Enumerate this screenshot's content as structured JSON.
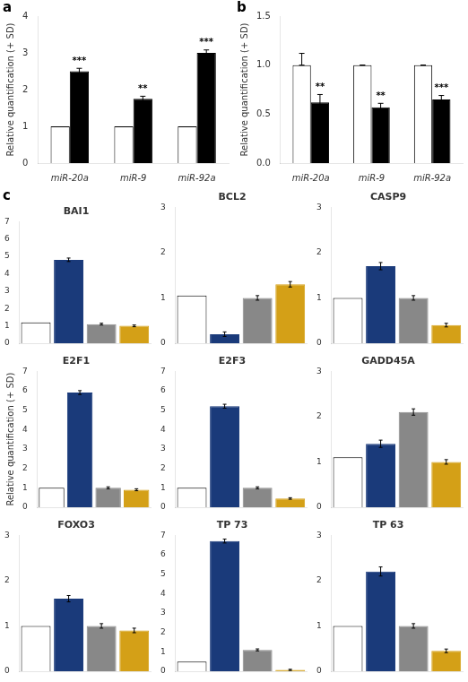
{
  "chart_data": [
    {
      "type": "bar",
      "annotations": [
        "a"
      ],
      "categories": [
        "miR-20a",
        "miR-9",
        "miR-92a"
      ],
      "series": [
        {
          "color": "#FFFFFF",
          "values": [
            1.0,
            1.0,
            1.0
          ]
        },
        {
          "color": "#000000",
          "values": [
            2.5,
            1.75,
            3.0
          ],
          "errors": [
            0.08,
            0.07,
            0.08
          ],
          "annotations": [
            "***",
            "**",
            "***"
          ]
        }
      ],
      "ylabel": "Relative quantification (+ SD)",
      "ylim": [
        0.0,
        4.0
      ],
      "yticks": [
        0,
        1,
        2,
        3,
        4
      ],
      "grid": false
    },
    {
      "type": "bar",
      "annotations": [
        "b"
      ],
      "categories": [
        "miR-20a",
        "miR-9",
        "miR-92a"
      ],
      "series": [
        {
          "color": "#FFFFFF",
          "values": [
            1.0,
            1.0,
            1.0
          ],
          "errors_minus": [
            0,
            0,
            0
          ],
          "errors_plus": [
            0.12,
            0.0,
            0.0
          ]
        },
        {
          "color": "#000000",
          "values": [
            0.62,
            0.57,
            0.65
          ],
          "errors": [
            0.08,
            0.04,
            0.04
          ],
          "annotations": [
            "**",
            "**",
            "***"
          ]
        }
      ],
      "ylabel": "Relative quantification (+ SD)",
      "ylim": [
        0.0,
        1.5
      ],
      "yticks": [
        {
          "value": 0.0,
          "label": "0.0"
        },
        0.5,
        {
          "value": 1.0,
          "label": "1.0"
        },
        1.5
      ],
      "grid": false
    },
    {
      "type": "bar",
      "title": "BAI1",
      "annotations": [
        "c"
      ],
      "categories": [
        null,
        null,
        null,
        null
      ],
      "values": [
        1.2,
        4.8,
        1.1,
        1.0
      ],
      "errors": [
        null,
        0.1,
        0.05,
        0.05
      ],
      "colors": [
        "#FFFFFF",
        "#1a3a7a",
        "#888888",
        "#D4A017"
      ],
      "ylim": [
        0,
        7
      ],
      "yticks": [
        0,
        1,
        2,
        3,
        4,
        5,
        6,
        7
      ],
      "grid": false,
      "tick_labels": "y"
    },
    {
      "type": "bar",
      "title": "BCL2",
      "categories": [
        null,
        null,
        null,
        null
      ],
      "values": [
        1.05,
        0.2,
        1.0,
        1.3
      ],
      "errors": [
        null,
        0.05,
        0.05,
        0.06
      ],
      "colors": [
        "#FFFFFF",
        "#1a3a7a",
        "#888888",
        "#D4A017"
      ],
      "ylim": [
        0,
        3
      ],
      "yticks": [
        0,
        1,
        2,
        3
      ],
      "grid": false,
      "tick_labels": "y"
    },
    {
      "type": "bar",
      "title": "CASP9",
      "categories": [
        null,
        null,
        null,
        null
      ],
      "values": [
        1.0,
        1.7,
        1.0,
        0.4
      ],
      "errors": [
        null,
        0.08,
        0.05,
        0.04
      ],
      "colors": [
        "#FFFFFF",
        "#1a3a7a",
        "#888888",
        "#D4A017"
      ],
      "ylim": [
        0,
        3
      ],
      "yticks": [
        0,
        1,
        2,
        3
      ],
      "grid": false,
      "tick_labels": "y"
    },
    {
      "type": "bar",
      "title": "E2F1",
      "categories": [
        null,
        null,
        null,
        null
      ],
      "values": [
        1.0,
        5.9,
        1.0,
        0.9
      ],
      "errors": [
        null,
        0.1,
        0.05,
        0.05
      ],
      "colors": [
        "#FFFFFF",
        "#1a3a7a",
        "#888888",
        "#D4A017"
      ],
      "ylabel": "Relative quantification (+ SD)",
      "ylim": [
        0,
        7
      ],
      "yticks": [
        0,
        1,
        2,
        3,
        4,
        5,
        6,
        7
      ],
      "grid": false,
      "tick_labels": "y"
    },
    {
      "type": "bar",
      "title": "E2F3",
      "categories": [
        null,
        null,
        null,
        null
      ],
      "values": [
        1.0,
        5.2,
        1.0,
        0.45
      ],
      "errors": [
        null,
        0.1,
        0.05,
        0.04
      ],
      "colors": [
        "#FFFFFF",
        "#1a3a7a",
        "#888888",
        "#D4A017"
      ],
      "ylim": [
        0,
        7
      ],
      "yticks": [
        0,
        1,
        2,
        3,
        4,
        5,
        6,
        7
      ],
      "grid": false,
      "tick_labels": "y"
    },
    {
      "type": "bar",
      "title": "GADD45A",
      "categories": [
        null,
        null,
        null,
        null
      ],
      "values": [
        1.1,
        1.4,
        2.1,
        1.0
      ],
      "errors": [
        null,
        0.08,
        0.07,
        0.05
      ],
      "colors": [
        "#FFFFFF",
        "#1a3a7a",
        "#888888",
        "#D4A017"
      ],
      "ylim": [
        0,
        3
      ],
      "yticks": [
        0,
        1,
        2,
        3
      ],
      "grid": false,
      "tick_labels": "y"
    },
    {
      "type": "bar",
      "title": "FOXO3",
      "categories": [
        null,
        null,
        null,
        null
      ],
      "values": [
        1.0,
        1.6,
        1.0,
        0.9
      ],
      "errors": [
        null,
        0.07,
        0.05,
        0.05
      ],
      "colors": [
        "#FFFFFF",
        "#1a3a7a",
        "#888888",
        "#D4A017"
      ],
      "ylim": [
        0,
        3
      ],
      "yticks": [
        0,
        1,
        2,
        3
      ],
      "grid": false,
      "tick_labels": "y"
    },
    {
      "type": "bar",
      "title": "TP 73",
      "categories": [
        null,
        null,
        null,
        null
      ],
      "values": [
        0.5,
        6.7,
        1.1,
        0.07
      ],
      "errors": [
        null,
        0.1,
        0.05,
        0.03
      ],
      "colors": [
        "#FFFFFF",
        "#1a3a7a",
        "#888888",
        "#D4A017"
      ],
      "ylim": [
        0,
        7
      ],
      "yticks": [
        0,
        1,
        2,
        3,
        4,
        5,
        6,
        7
      ],
      "grid": false,
      "tick_labels": "y"
    },
    {
      "type": "bar",
      "title": "TP 63",
      "categories": [
        null,
        null,
        null,
        null
      ],
      "values": [
        1.0,
        2.2,
        1.0,
        0.45
      ],
      "errors": [
        null,
        0.1,
        0.05,
        0.04
      ],
      "colors": [
        "#FFFFFF",
        "#1a3a7a",
        "#888888",
        "#D4A017"
      ],
      "ylim": [
        0,
        3
      ],
      "yticks": [
        0,
        1,
        2,
        3
      ],
      "grid": false,
      "tick_labels": "y"
    }
  ]
}
